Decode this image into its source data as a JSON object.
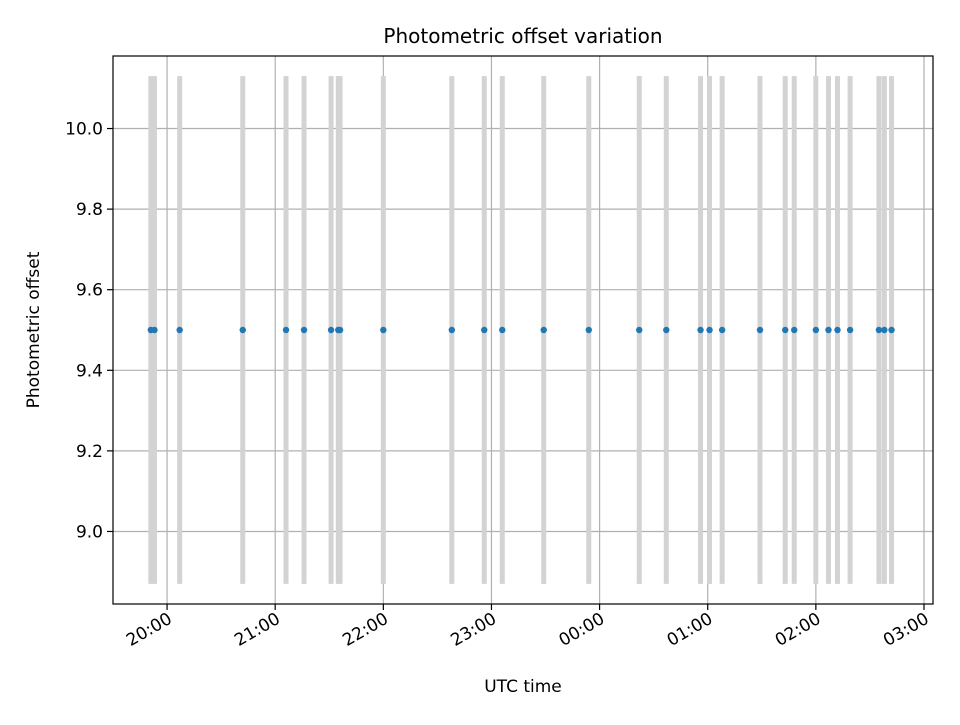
{
  "chart_data": {
    "type": "scatter",
    "title": "Photometric offset variation",
    "xlabel": "UTC time",
    "ylabel": "Photometric offset",
    "x_unit": "UTC time (HH:MM)",
    "x_tick_labels": [
      "20:00",
      "21:00",
      "22:00",
      "23:00",
      "00:00",
      "01:00",
      "02:00",
      "03:00"
    ],
    "x_tick_times": [
      "20:00",
      "21:00",
      "22:00",
      "23:00",
      "24:00",
      "25:00",
      "26:00",
      "27:00"
    ],
    "y_tick_labels": [
      "9.0",
      "9.2",
      "9.4",
      "9.6",
      "9.8",
      "10.0"
    ],
    "y_tick_values": [
      9.0,
      9.2,
      9.4,
      9.6,
      9.8,
      10.0
    ],
    "xlim": [
      "19:30",
      "27:05"
    ],
    "ylim": [
      8.82,
      10.18
    ],
    "grid": true,
    "series": [
      {
        "color": "#1f77b4",
        "x": [
          "19:51",
          "19:53",
          "20:07",
          "20:42",
          "21:06",
          "21:16",
          "21:31",
          "21:35",
          "21:36",
          "22:00",
          "22:38",
          "22:56",
          "23:06",
          "23:29",
          "23:54",
          "24:22",
          "24:37",
          "24:56",
          "25:01",
          "25:08",
          "25:29",
          "25:43",
          "25:48",
          "26:00",
          "26:07",
          "26:12",
          "26:19",
          "26:35",
          "26:38",
          "26:42"
        ],
        "y": [
          9.5,
          9.5,
          9.5,
          9.5,
          9.5,
          9.5,
          9.5,
          9.5,
          9.5,
          9.5,
          9.5,
          9.5,
          9.5,
          9.5,
          9.5,
          9.5,
          9.5,
          9.5,
          9.5,
          9.5,
          9.5,
          9.5,
          9.5,
          9.5,
          9.5,
          9.5,
          9.5,
          9.5,
          9.5,
          9.5
        ]
      }
    ],
    "error_bars": {
      "color": "#d3d3d3",
      "y_low": 8.87,
      "y_high": 10.13
    }
  }
}
